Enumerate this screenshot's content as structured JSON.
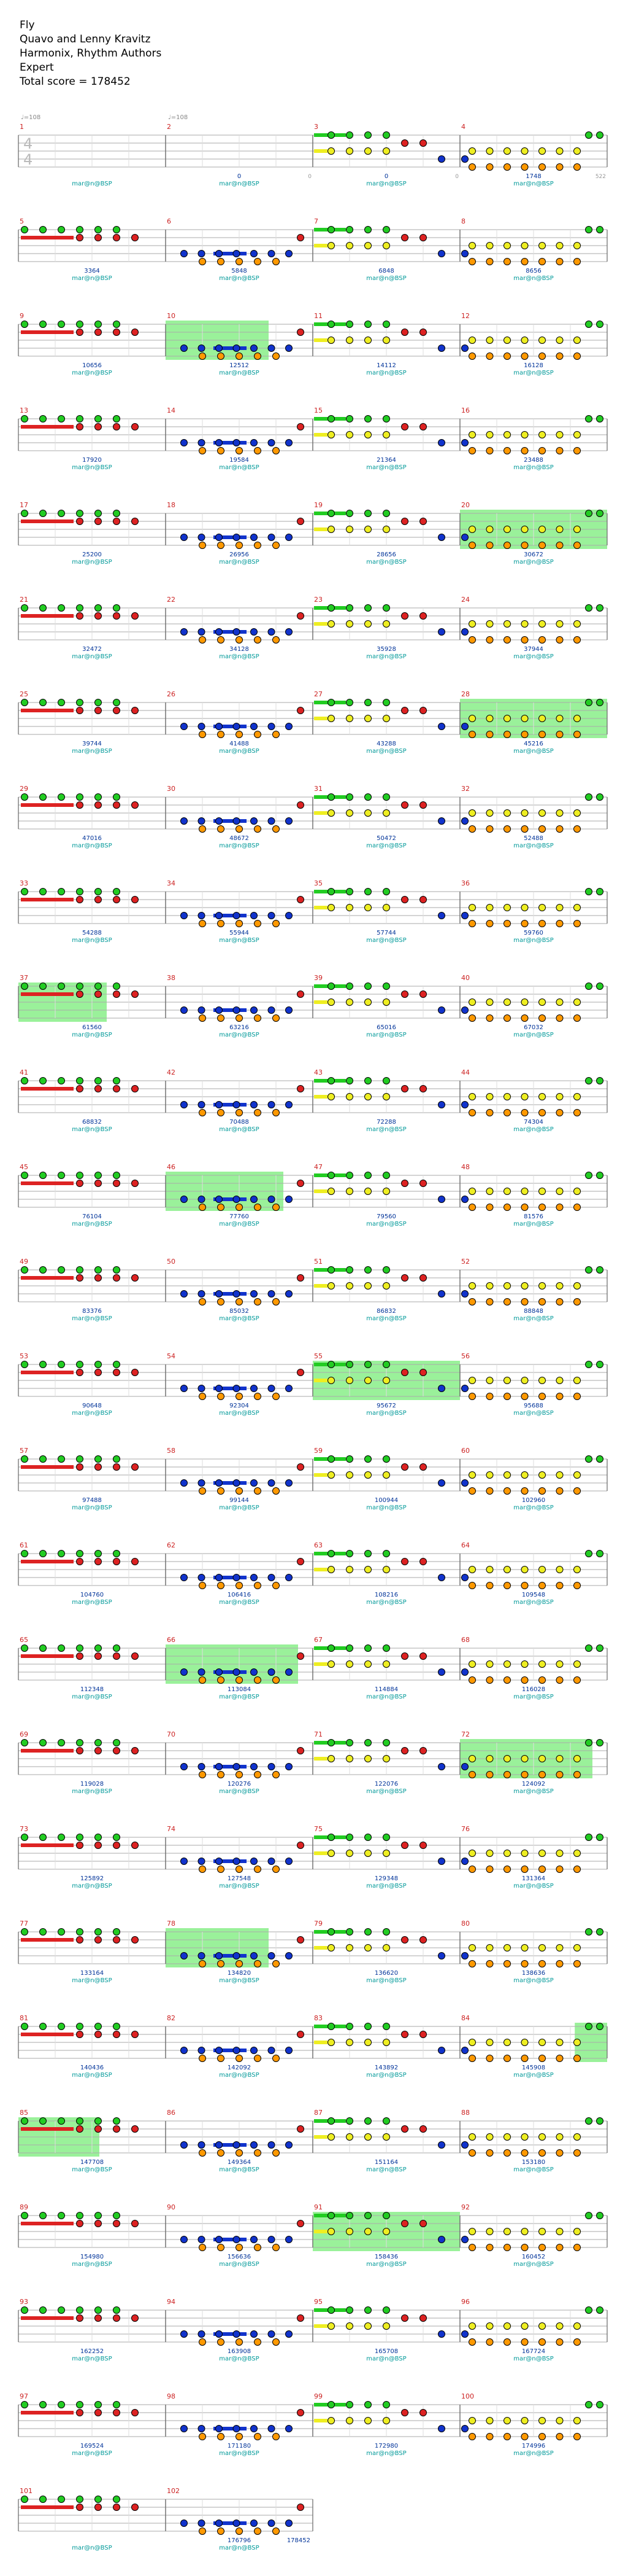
{
  "song": {
    "title": "Fly",
    "artist": "Quavo and Lenny Kravitz",
    "charter": "Harmonix, Rhythm Authors",
    "difficulty": "Expert",
    "total_score_label": "Total score = 178452"
  },
  "time_signature": {
    "numerator": "4",
    "denominator": "4"
  },
  "tempo_label": "♩=108",
  "section_label": "mar@n@BSP",
  "colors": {
    "green": "#22cc22",
    "red": "#dd2222",
    "yellow": "#eeee22",
    "blue": "#1133cc",
    "orange": "#ff9900",
    "measure_number": "#cc2222",
    "score": "#003399",
    "section": "#009999",
    "star_power": "#88ee88",
    "staff_line": "#aaaaaa"
  },
  "measures": [
    {
      "n": "1",
      "score": "",
      "tick": "",
      "tempo": true,
      "ts": true,
      "notes": "rest"
    },
    {
      "n": "2",
      "score": "0",
      "tick": "0",
      "tempo": true,
      "notes": "rest"
    },
    {
      "n": "3",
      "score": "0",
      "tick": "0",
      "notes": "gy"
    },
    {
      "n": "4",
      "score": "1748",
      "tick": "522",
      "notes": "oy"
    },
    {
      "n": "5",
      "score": "3364",
      "tick": "",
      "notes": "gr"
    },
    {
      "n": "6",
      "score": "5848",
      "tick": "",
      "notes": "bo"
    },
    {
      "n": "7",
      "score": "6848",
      "tick": "",
      "notes": "gy"
    },
    {
      "n": "8",
      "score": "8656",
      "tick": "",
      "notes": "oy"
    },
    {
      "n": "9",
      "score": "10656",
      "tick": "",
      "notes": "gr"
    },
    {
      "n": "10",
      "score": "12512",
      "tick": "",
      "notes": "bo",
      "sp": [
        0,
        0.7
      ]
    },
    {
      "n": "11",
      "score": "14112",
      "tick": "",
      "notes": "gy"
    },
    {
      "n": "12",
      "score": "16128",
      "tick": "",
      "notes": "oy"
    },
    {
      "n": "13",
      "score": "17920",
      "tick": "",
      "notes": "gr"
    },
    {
      "n": "14",
      "score": "19584",
      "tick": "",
      "notes": "bo"
    },
    {
      "n": "15",
      "score": "21364",
      "tick": "",
      "notes": "gy"
    },
    {
      "n": "16",
      "score": "23488",
      "tick": "",
      "notes": "oy"
    },
    {
      "n": "17",
      "score": "25200",
      "tick": "",
      "notes": "gr"
    },
    {
      "n": "18",
      "score": "26956",
      "tick": "",
      "notes": "bo"
    },
    {
      "n": "19",
      "score": "28656",
      "tick": "",
      "notes": "gy"
    },
    {
      "n": "20",
      "score": "30672",
      "tick": "",
      "notes": "oy",
      "sp": [
        0,
        1
      ]
    },
    {
      "n": "21",
      "score": "32472",
      "tick": "",
      "notes": "gr"
    },
    {
      "n": "22",
      "score": "34128",
      "tick": "",
      "notes": "bo"
    },
    {
      "n": "23",
      "score": "35928",
      "tick": "",
      "notes": "gy"
    },
    {
      "n": "24",
      "score": "37944",
      "tick": "",
      "notes": "oy"
    },
    {
      "n": "25",
      "score": "39744",
      "tick": "",
      "notes": "gr"
    },
    {
      "n": "26",
      "score": "41488",
      "tick": "",
      "notes": "bo"
    },
    {
      "n": "27",
      "score": "43288",
      "tick": "",
      "notes": "gy"
    },
    {
      "n": "28",
      "score": "45216",
      "tick": "",
      "notes": "oy",
      "sp": [
        0,
        1
      ]
    },
    {
      "n": "29",
      "score": "47016",
      "tick": "",
      "notes": "gr"
    },
    {
      "n": "30",
      "score": "48672",
      "tick": "",
      "notes": "bo"
    },
    {
      "n": "31",
      "score": "50472",
      "tick": "",
      "notes": "gy"
    },
    {
      "n": "32",
      "score": "52488",
      "tick": "",
      "notes": "oy"
    },
    {
      "n": "33",
      "score": "54288",
      "tick": "",
      "notes": "gr"
    },
    {
      "n": "34",
      "score": "55944",
      "tick": "",
      "notes": "bo"
    },
    {
      "n": "35",
      "score": "57744",
      "tick": "",
      "notes": "gy"
    },
    {
      "n": "36",
      "score": "59760",
      "tick": "",
      "notes": "oy"
    },
    {
      "n": "37",
      "score": "61560",
      "tick": "",
      "notes": "gr",
      "sp": [
        0,
        0.6
      ]
    },
    {
      "n": "38",
      "score": "63216",
      "tick": "",
      "notes": "bo"
    },
    {
      "n": "39",
      "score": "65016",
      "tick": "",
      "notes": "gy"
    },
    {
      "n": "40",
      "score": "67032",
      "tick": "",
      "notes": "oy"
    },
    {
      "n": "41",
      "score": "68832",
      "tick": "",
      "notes": "gr"
    },
    {
      "n": "42",
      "score": "70488",
      "tick": "",
      "notes": "bo"
    },
    {
      "n": "43",
      "score": "72288",
      "tick": "",
      "notes": "gy"
    },
    {
      "n": "44",
      "score": "74304",
      "tick": "",
      "notes": "oy"
    },
    {
      "n": "45",
      "score": "76104",
      "tick": "",
      "notes": "gr"
    },
    {
      "n": "46",
      "score": "77760",
      "tick": "",
      "notes": "bo",
      "sp": [
        0,
        0.8
      ]
    },
    {
      "n": "47",
      "score": "79560",
      "tick": "",
      "notes": "gy"
    },
    {
      "n": "48",
      "score": "81576",
      "tick": "",
      "notes": "oy"
    },
    {
      "n": "49",
      "score": "83376",
      "tick": "",
      "notes": "gr"
    },
    {
      "n": "50",
      "score": "85032",
      "tick": "",
      "notes": "bo"
    },
    {
      "n": "51",
      "score": "86832",
      "tick": "",
      "notes": "gy"
    },
    {
      "n": "52",
      "score": "88848",
      "tick": "",
      "notes": "oy"
    },
    {
      "n": "53",
      "score": "90648",
      "tick": "",
      "notes": "gr"
    },
    {
      "n": "54",
      "score": "92304",
      "tick": "",
      "notes": "bo"
    },
    {
      "n": "55",
      "score": "95672",
      "tick": "",
      "notes": "gy",
      "sp": [
        0,
        1
      ]
    },
    {
      "n": "56",
      "score": "95688",
      "tick": "",
      "notes": "oy"
    },
    {
      "n": "57",
      "score": "97488",
      "tick": "",
      "notes": "gr"
    },
    {
      "n": "58",
      "score": "99144",
      "tick": "",
      "notes": "bo"
    },
    {
      "n": "59",
      "score": "100944",
      "tick": "",
      "notes": "gy"
    },
    {
      "n": "60",
      "score": "102960",
      "tick": "",
      "notes": "oy"
    },
    {
      "n": "61",
      "score": "104760",
      "tick": "",
      "notes": "gr"
    },
    {
      "n": "62",
      "score": "106416",
      "tick": "",
      "notes": "bo"
    },
    {
      "n": "63",
      "score": "108216",
      "tick": "",
      "notes": "gy"
    },
    {
      "n": "64",
      "score": "109548",
      "tick": "",
      "notes": "oy"
    },
    {
      "n": "65",
      "score": "112348",
      "tick": "",
      "notes": "gr"
    },
    {
      "n": "66",
      "score": "113084",
      "tick": "",
      "notes": "bo",
      "sp": [
        0,
        0.9
      ]
    },
    {
      "n": "67",
      "score": "114884",
      "tick": "",
      "notes": "gy"
    },
    {
      "n": "68",
      "score": "116028",
      "tick": "",
      "notes": "oy"
    },
    {
      "n": "69",
      "score": "119028",
      "tick": "",
      "notes": "gr"
    },
    {
      "n": "70",
      "score": "120276",
      "tick": "",
      "notes": "bo"
    },
    {
      "n": "71",
      "score": "122076",
      "tick": "",
      "notes": "gy"
    },
    {
      "n": "72",
      "score": "124092",
      "tick": "",
      "notes": "oy",
      "sp": [
        0,
        0.9
      ]
    },
    {
      "n": "73",
      "score": "125892",
      "tick": "",
      "notes": "gr"
    },
    {
      "n": "74",
      "score": "127548",
      "tick": "",
      "notes": "bo"
    },
    {
      "n": "75",
      "score": "129348",
      "tick": "",
      "notes": "gy"
    },
    {
      "n": "76",
      "score": "131364",
      "tick": "",
      "notes": "oy"
    },
    {
      "n": "77",
      "score": "133164",
      "tick": "",
      "notes": "gr"
    },
    {
      "n": "78",
      "score": "134820",
      "tick": "",
      "notes": "bo",
      "sp": [
        0,
        0.7
      ]
    },
    {
      "n": "79",
      "score": "136620",
      "tick": "",
      "notes": "gy"
    },
    {
      "n": "80",
      "score": "138636",
      "tick": "",
      "notes": "oy"
    },
    {
      "n": "81",
      "score": "140436",
      "tick": "",
      "notes": "gr"
    },
    {
      "n": "82",
      "score": "142092",
      "tick": "",
      "notes": "bo"
    },
    {
      "n": "83",
      "score": "143892",
      "tick": "",
      "notes": "gy"
    },
    {
      "n": "84",
      "score": "145908",
      "tick": "",
      "notes": "oy",
      "sp": [
        0.78,
        1
      ]
    },
    {
      "n": "85",
      "score": "147708",
      "tick": "",
      "notes": "gr",
      "sp": [
        0,
        0.55
      ]
    },
    {
      "n": "86",
      "score": "149364",
      "tick": "",
      "notes": "bo"
    },
    {
      "n": "87",
      "score": "151164",
      "tick": "",
      "notes": "gy"
    },
    {
      "n": "88",
      "score": "153180",
      "tick": "",
      "notes": "oy"
    },
    {
      "n": "89",
      "score": "154980",
      "tick": "",
      "notes": "gr"
    },
    {
      "n": "90",
      "score": "156636",
      "tick": "",
      "notes": "bo"
    },
    {
      "n": "91",
      "score": "158436",
      "tick": "",
      "notes": "gy",
      "sp": [
        0,
        1
      ]
    },
    {
      "n": "92",
      "score": "160452",
      "tick": "",
      "notes": "oy"
    },
    {
      "n": "93",
      "score": "162252",
      "tick": "",
      "notes": "gr"
    },
    {
      "n": "94",
      "score": "163908",
      "tick": "",
      "notes": "bo"
    },
    {
      "n": "95",
      "score": "165708",
      "tick": "",
      "notes": "gy"
    },
    {
      "n": "96",
      "score": "167724",
      "tick": "",
      "notes": "oy"
    },
    {
      "n": "97",
      "score": "169524",
      "tick": "",
      "notes": "gr"
    },
    {
      "n": "98",
      "score": "171180",
      "tick": "",
      "notes": "bo"
    },
    {
      "n": "99",
      "score": "172980",
      "tick": "",
      "notes": "gy"
    },
    {
      "n": "100",
      "score": "174996",
      "tick": "",
      "notes": "oy"
    },
    {
      "n": "101",
      "score": "",
      "tick": "",
      "notes": "gr"
    },
    {
      "n": "102",
      "score": "176796",
      "tick": "",
      "notes": "bo"
    },
    {
      "n": "",
      "score": "178452",
      "tick": "",
      "notes": "end"
    }
  ]
}
